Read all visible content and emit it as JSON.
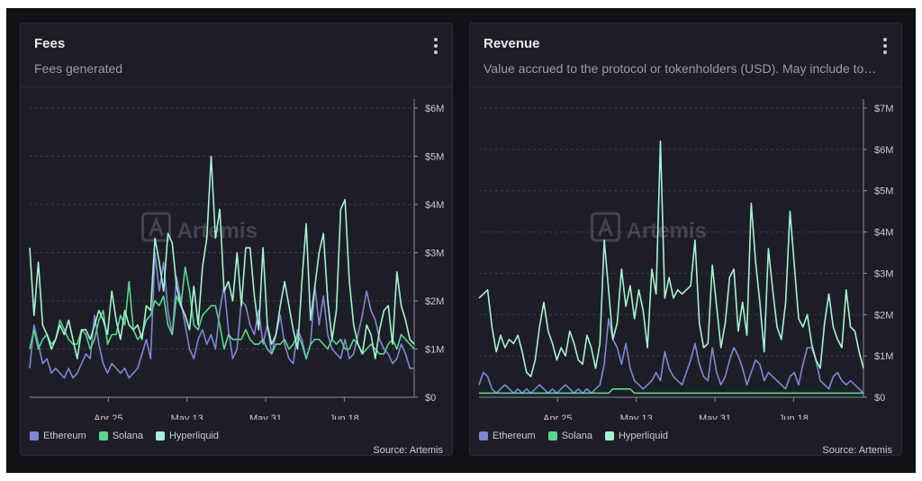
{
  "colors": {
    "ethereum": "#7f86d6",
    "solana": "#58d68d",
    "hyperliquid": "#a5f2d2"
  },
  "watermark": "Artemis",
  "chart_data": [
    {
      "type": "line",
      "title": "Fees",
      "subtitle": "Fees generated",
      "source": "Source: Artemis",
      "x_start": "2024-04-07",
      "x_end": "2024-07-04",
      "x_ticks": [
        "Apr 25",
        "May 13",
        "May 31",
        "Jun 18"
      ],
      "ylim": [
        0,
        6
      ],
      "y_ticks": [
        "$0",
        "$1M",
        "$2M",
        "$3M",
        "$4M",
        "$5M",
        "$6M"
      ],
      "unit": "USD millions",
      "grid": true,
      "legend": "bottom-left",
      "series": [
        {
          "name": "Ethereum",
          "color": "#7f86d6",
          "values": [
            0.6,
            1.5,
            1.1,
            0.7,
            0.8,
            0.5,
            0.6,
            0.5,
            0.4,
            0.6,
            0.4,
            0.5,
            0.7,
            0.9,
            0.8,
            1.7,
            1.1,
            0.7,
            0.5,
            0.7,
            0.6,
            0.5,
            0.6,
            0.4,
            0.5,
            0.6,
            0.9,
            1.2,
            0.8,
            3.0,
            2.2,
            2.8,
            1.8,
            1.3,
            2.5,
            2.0,
            1.5,
            1.0,
            0.8,
            1.2,
            1.4,
            1.1,
            1.3,
            1.0,
            1.8,
            2.3,
            1.4,
            0.8,
            1.0,
            2.0,
            1.9,
            1.5,
            1.3,
            1.8,
            1.1,
            1.5,
            0.9,
            1.3,
            1.7,
            1.1,
            0.8,
            0.7,
            1.4,
            1.2,
            0.8,
            1.1,
            2.3,
            1.5,
            2.1,
            1.3,
            1.0,
            0.9,
            0.8,
            1.2,
            0.8,
            0.9,
            1.3,
            1.7,
            2.2,
            1.8,
            1.6,
            1.2,
            1.0,
            0.9,
            0.7,
            0.8,
            1.1,
            0.9,
            0.6,
            0.6
          ]
        },
        {
          "name": "Solana",
          "color": "#58d68d",
          "values": [
            1.0,
            1.4,
            1.0,
            1.2,
            1.3,
            1.1,
            1.2,
            1.6,
            1.4,
            1.2,
            1.1,
            1.1,
            1.4,
            1.3,
            1.0,
            1.2,
            1.6,
            1.8,
            1.1,
            1.3,
            1.3,
            1.7,
            1.5,
            2.4,
            1.4,
            1.2,
            1.3,
            1.6,
            1.7,
            2.0,
            1.9,
            2.1,
            1.5,
            1.3,
            2.1,
            1.9,
            2.7,
            2.2,
            1.5,
            1.4,
            1.7,
            1.8,
            1.9,
            1.9,
            1.5,
            1.0,
            1.3,
            1.2,
            1.2,
            1.2,
            1.4,
            1.2,
            1.1,
            1.1,
            1.2,
            1.0,
            0.9,
            1.1,
            1.1,
            1.2,
            1.0,
            1.1,
            1.3,
            1.1,
            0.8,
            1.1,
            1.2,
            1.2,
            1.1,
            1.0,
            1.2,
            1.1,
            1.2,
            1.0,
            1.0,
            1.2,
            1.1,
            0.9,
            1.0,
            1.1,
            1.0,
            0.9,
            0.9,
            1.1,
            1.2,
            1.0,
            1.3,
            1.2,
            1.1,
            1.0
          ]
        },
        {
          "name": "Hyperliquid",
          "color": "#a5f2d2",
          "values": [
            3.1,
            1.7,
            2.8,
            1.5,
            1.3,
            1.0,
            1.2,
            1.5,
            1.3,
            1.6,
            1.2,
            0.8,
            1.4,
            1.4,
            1.2,
            1.5,
            1.8,
            1.6,
            1.3,
            2.2,
            1.6,
            1.2,
            1.8,
            1.5,
            1.4,
            1.5,
            1.2,
            1.9,
            1.8,
            3.3,
            2.8,
            2.2,
            3.4,
            3.2,
            2.3,
            1.9,
            1.7,
            1.4,
            2.3,
            1.5,
            2.7,
            3.3,
            5.0,
            3.3,
            3.9,
            2.2,
            2.4,
            2.0,
            3.0,
            1.9,
            3.1,
            3.1,
            2.1,
            1.4,
            3.1,
            1.5,
            1.1,
            1.3,
            1.9,
            2.4,
            1.9,
            1.4,
            1.0,
            2.4,
            3.6,
            1.6,
            2.3,
            3.0,
            3.4,
            2.0,
            1.2,
            1.8,
            3.9,
            4.1,
            2.4,
            1.5,
            1.1,
            0.9,
            1.5,
            1.3,
            0.8,
            1.4,
            1.8,
            1.9,
            1.1,
            2.6,
            1.9,
            1.6,
            1.2,
            1.1
          ]
        }
      ]
    },
    {
      "type": "line",
      "title": "Revenue",
      "subtitle": "Value accrued to the protocol or tokenholders (USD). May include token incentives.",
      "source": "Source: Artemis",
      "x_start": "2024-04-07",
      "x_end": "2024-07-04",
      "x_ticks": [
        "Apr 25",
        "May 13",
        "May 31",
        "Jun 18"
      ],
      "ylim": [
        0,
        7
      ],
      "y_ticks": [
        "$0",
        "$1M",
        "$2M",
        "$3M",
        "$4M",
        "$5M",
        "$6M",
        "$7M"
      ],
      "unit": "USD millions",
      "grid": true,
      "legend": "bottom-left",
      "series": [
        {
          "name": "Ethereum",
          "color": "#7f86d6",
          "values": [
            0.3,
            0.6,
            0.5,
            0.2,
            0.1,
            0.2,
            0.3,
            0.2,
            0.1,
            0.2,
            0.1,
            0.2,
            0.1,
            0.2,
            0.3,
            0.2,
            0.1,
            0.2,
            0.1,
            0.2,
            0.3,
            0.2,
            0.1,
            0.2,
            0.1,
            0.2,
            0.1,
            0.2,
            0.3,
            0.8,
            1.9,
            1.4,
            1.2,
            0.8,
            1.3,
            0.7,
            0.4,
            0.3,
            0.2,
            0.3,
            0.4,
            0.6,
            0.4,
            1.1,
            0.7,
            0.5,
            0.4,
            0.3,
            0.6,
            0.9,
            1.3,
            0.8,
            0.5,
            0.4,
            1.2,
            0.6,
            0.3,
            0.5,
            0.9,
            1.2,
            1.0,
            0.7,
            0.3,
            0.6,
            0.9,
            0.8,
            0.4,
            0.6,
            0.5,
            0.4,
            0.3,
            0.2,
            0.5,
            0.6,
            0.3,
            0.8,
            1.2,
            1.2,
            0.9,
            0.4,
            0.3,
            0.2,
            0.5,
            0.6,
            0.4,
            0.3,
            0.4,
            0.3,
            0.2,
            0.1
          ]
        },
        {
          "name": "Solana",
          "color": "#58d68d",
          "values": [
            0.1,
            0.1,
            0.1,
            0.1,
            0.1,
            0.1,
            0.1,
            0.1,
            0.1,
            0.1,
            0.1,
            0.1,
            0.1,
            0.1,
            0.1,
            0.1,
            0.1,
            0.1,
            0.1,
            0.1,
            0.1,
            0.1,
            0.1,
            0.1,
            0.1,
            0.1,
            0.1,
            0.1,
            0.1,
            0.1,
            0.1,
            0.2,
            0.2,
            0.2,
            0.2,
            0.2,
            0.1,
            0.1,
            0.1,
            0.1,
            0.1,
            0.1,
            0.1,
            0.1,
            0.1,
            0.1,
            0.1,
            0.1,
            0.1,
            0.1,
            0.1,
            0.1,
            0.1,
            0.1,
            0.1,
            0.1,
            0.1,
            0.1,
            0.1,
            0.1,
            0.1,
            0.1,
            0.1,
            0.1,
            0.1,
            0.1,
            0.1,
            0.1,
            0.1,
            0.1,
            0.1,
            0.1,
            0.1,
            0.1,
            0.1,
            0.1,
            0.1,
            0.1,
            0.1,
            0.1,
            0.1,
            0.1,
            0.1,
            0.1,
            0.1,
            0.1,
            0.1,
            0.1,
            0.1,
            0.1
          ]
        },
        {
          "name": "Hyperliquid",
          "color": "#a5f2d2",
          "values": [
            2.4,
            2.5,
            2.6,
            1.7,
            1.1,
            1.5,
            1.2,
            1.4,
            1.3,
            1.5,
            1.1,
            0.6,
            0.5,
            0.9,
            1.7,
            2.3,
            1.6,
            1.3,
            0.9,
            1.2,
            1.0,
            1.6,
            1.3,
            0.9,
            0.8,
            1.5,
            1.2,
            0.7,
            1.3,
            3.8,
            2.6,
            1.4,
            1.8,
            3.1,
            2.2,
            2.7,
            1.9,
            2.6,
            2.1,
            1.2,
            3.1,
            2.5,
            6.2,
            2.4,
            2.9,
            2.4,
            2.6,
            2.5,
            2.6,
            2.7,
            3.8,
            1.8,
            1.2,
            1.3,
            3.2,
            2.2,
            1.2,
            1.8,
            2.9,
            3.1,
            1.6,
            2.3,
            1.5,
            4.7,
            3.3,
            2.3,
            1.1,
            3.6,
            2.6,
            1.7,
            1.4,
            2.3,
            4.5,
            3.2,
            1.9,
            1.7,
            2.0,
            1.3,
            0.9,
            0.7,
            1.8,
            2.5,
            1.7,
            1.4,
            1.2,
            2.6,
            1.7,
            1.6,
            1.1,
            0.7
          ]
        }
      ]
    }
  ]
}
